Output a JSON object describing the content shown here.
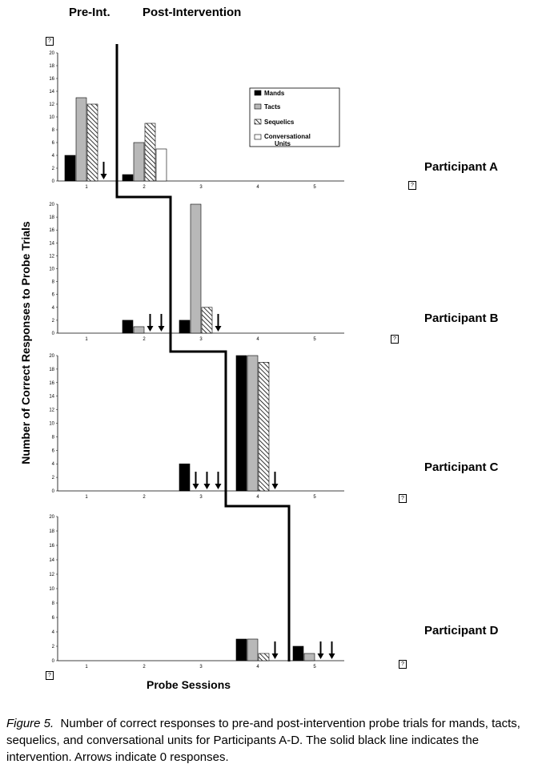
{
  "header": {
    "pre": "Pre-Int.",
    "post": "Post-Intervention"
  },
  "y_axis_label": "Number of Correct Responses to Probe Trials",
  "x_axis_label": "Probe Sessions",
  "legend": {
    "mands": "Mands",
    "tacts": "Tacts",
    "sequelics": "Sequelics",
    "conv1": "Conversational",
    "conv2": "Units"
  },
  "caption": {
    "fig": "Figure 5.",
    "text": "Number of correct responses to pre-and post-intervention probe trials for mands, tacts, sequelics, and conversational units for Participants A-D.  The solid black line indicates the intervention.  Arrows indicate 0 responses."
  },
  "missing_glyph": "?",
  "colors": {
    "mands": "#000000",
    "tacts": "#b8b8b8",
    "sequelics": "hatched",
    "conversational": "#ffffff"
  },
  "chart_data": [
    {
      "type": "bar",
      "participant": "Participant A",
      "categories": [
        "1",
        "2",
        "3",
        "4",
        "5"
      ],
      "ylim": [
        0,
        20
      ],
      "yticks": [
        0,
        2,
        4,
        6,
        8,
        10,
        12,
        14,
        16,
        18,
        20
      ],
      "series": [
        {
          "name": "Mands",
          "values": [
            4,
            1,
            null,
            null,
            null
          ]
        },
        {
          "name": "Tacts",
          "values": [
            13,
            6,
            null,
            null,
            null
          ]
        },
        {
          "name": "Sequelics",
          "values": [
            12,
            9,
            null,
            null,
            null
          ]
        },
        {
          "name": "Conversational Units",
          "values": [
            0,
            5,
            null,
            null,
            null
          ]
        }
      ],
      "zero_arrows": [
        {
          "session": 1,
          "series": "Conversational Units"
        }
      ],
      "legend": "top-right"
    },
    {
      "type": "bar",
      "participant": "Participant B",
      "categories": [
        "1",
        "2",
        "3",
        "4",
        "5"
      ],
      "ylim": [
        0,
        20
      ],
      "yticks": [
        0,
        2,
        4,
        6,
        8,
        10,
        12,
        14,
        16,
        18,
        20
      ],
      "series": [
        {
          "name": "Mands",
          "values": [
            null,
            2,
            2,
            null,
            null
          ]
        },
        {
          "name": "Tacts",
          "values": [
            null,
            1,
            20,
            null,
            null
          ]
        },
        {
          "name": "Sequelics",
          "values": [
            null,
            0,
            4,
            null,
            null
          ]
        },
        {
          "name": "Conversational Units",
          "values": [
            null,
            0,
            0,
            null,
            null
          ]
        }
      ],
      "zero_arrows": [
        {
          "session": 2,
          "series": "Sequelics"
        },
        {
          "session": 2,
          "series": "Conversational Units"
        },
        {
          "session": 3,
          "series": "Conversational Units"
        }
      ]
    },
    {
      "type": "bar",
      "participant": "Participant C",
      "categories": [
        "1",
        "2",
        "3",
        "4",
        "5"
      ],
      "ylim": [
        0,
        20
      ],
      "yticks": [
        0,
        2,
        4,
        6,
        8,
        10,
        12,
        14,
        16,
        18,
        20
      ],
      "series": [
        {
          "name": "Mands",
          "values": [
            null,
            null,
            4,
            20,
            null
          ]
        },
        {
          "name": "Tacts",
          "values": [
            null,
            null,
            0,
            20,
            null
          ]
        },
        {
          "name": "Sequelics",
          "values": [
            null,
            null,
            0,
            19,
            null
          ]
        },
        {
          "name": "Conversational Units",
          "values": [
            null,
            null,
            0,
            0,
            null
          ]
        }
      ],
      "zero_arrows": [
        {
          "session": 3,
          "series": "Tacts"
        },
        {
          "session": 3,
          "series": "Sequelics"
        },
        {
          "session": 3,
          "series": "Conversational Units"
        },
        {
          "session": 4,
          "series": "Conversational Units"
        }
      ]
    },
    {
      "type": "bar",
      "participant": "Participant D",
      "categories": [
        "1",
        "2",
        "3",
        "4",
        "5"
      ],
      "ylim": [
        0,
        20
      ],
      "yticks": [
        0,
        2,
        4,
        6,
        8,
        10,
        12,
        14,
        16,
        18,
        20
      ],
      "series": [
        {
          "name": "Mands",
          "values": [
            null,
            null,
            null,
            3,
            2
          ]
        },
        {
          "name": "Tacts",
          "values": [
            null,
            null,
            null,
            3,
            1
          ]
        },
        {
          "name": "Sequelics",
          "values": [
            null,
            null,
            null,
            1,
            0
          ]
        },
        {
          "name": "Conversational Units",
          "values": [
            null,
            null,
            null,
            0,
            0
          ]
        }
      ],
      "zero_arrows": [
        {
          "session": 4,
          "series": "Conversational Units"
        },
        {
          "session": 5,
          "series": "Sequelics"
        },
        {
          "session": 5,
          "series": "Conversational Units"
        }
      ]
    }
  ]
}
